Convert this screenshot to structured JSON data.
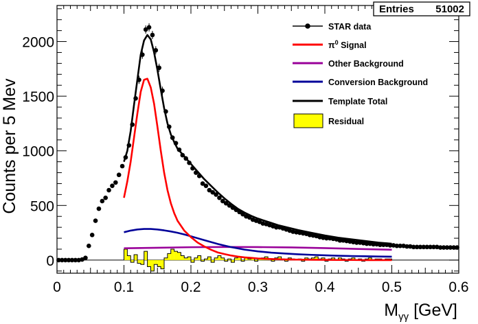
{
  "stats": {
    "label": "Entries",
    "value": "51002"
  },
  "chart_data": {
    "type": "line",
    "xlabel_main": "M",
    "xlabel_sub": "γγ",
    "xlabel_unit": " [GeV]",
    "ylabel": "Counts per 5 Mev",
    "xlim": [
      0,
      0.6
    ],
    "ylim": [
      -120,
      2330
    ],
    "x_ticks": [
      "0",
      "0.1",
      "0.2",
      "0.3",
      "0.4",
      "0.5",
      "0.6"
    ],
    "y_ticks": [
      "0",
      "500",
      "1000",
      "1500",
      "2000"
    ],
    "legend": {
      "star": "STAR data",
      "signal_pi": "π",
      "signal_sup": "0",
      "signal_rest": " Signal",
      "other": "Other Background",
      "conversion": "Conversion Background",
      "template": "Template Total",
      "residual": "Residual"
    },
    "colors": {
      "data": "#000000",
      "signal": "#ff0000",
      "other": "#990099",
      "conversion": "#000099",
      "template": "#000000",
      "residual_fill": "#ffff00",
      "residual_line": "#000000"
    },
    "series": [
      {
        "name": "STAR data",
        "x": [
          0.0025,
          0.0075,
          0.0125,
          0.0175,
          0.0225,
          0.0275,
          0.0325,
          0.0375,
          0.0425,
          0.0475,
          0.0525,
          0.0575,
          0.0625,
          0.0675,
          0.0725,
          0.0775,
          0.0825,
          0.0875,
          0.0925,
          0.0975,
          0.1025,
          0.1075,
          0.1125,
          0.1175,
          0.1225,
          0.1275,
          0.1325,
          0.1375,
          0.1425,
          0.1475,
          0.1525,
          0.1575,
          0.1625,
          0.1675,
          0.1725,
          0.1775,
          0.1825,
          0.1875,
          0.1925,
          0.1975,
          0.2025,
          0.2075,
          0.2125,
          0.2175,
          0.2225,
          0.2275,
          0.2325,
          0.2375,
          0.2425,
          0.2475,
          0.2525,
          0.2575,
          0.2625,
          0.2675,
          0.2725,
          0.2775,
          0.2825,
          0.2875,
          0.2925,
          0.2975,
          0.3025,
          0.3075,
          0.3125,
          0.3175,
          0.3225,
          0.3275,
          0.3325,
          0.3375,
          0.3425,
          0.3475,
          0.3525,
          0.3575,
          0.3625,
          0.3675,
          0.3725,
          0.3775,
          0.3825,
          0.3875,
          0.3925,
          0.3975,
          0.4025,
          0.4075,
          0.4125,
          0.4175,
          0.4225,
          0.4275,
          0.4325,
          0.4375,
          0.4425,
          0.4475,
          0.4525,
          0.4575,
          0.4625,
          0.4675,
          0.4725,
          0.4775,
          0.4825,
          0.4875,
          0.4925,
          0.4975,
          0.5025,
          0.5075,
          0.5125,
          0.5175,
          0.5225,
          0.5275,
          0.5325,
          0.5375,
          0.5425,
          0.5475,
          0.5525,
          0.5575,
          0.5625,
          0.5675,
          0.5725,
          0.5775,
          0.5825,
          0.5875,
          0.5925,
          0.5975
        ],
        "y": [
          0,
          0,
          0,
          0,
          0,
          0,
          0,
          5,
          20,
          130,
          230,
          360,
          470,
          540,
          570,
          640,
          680,
          710,
          780,
          860,
          940,
          1050,
          1240,
          1480,
          1650,
          1880,
          2110,
          2130,
          2060,
          1920,
          1760,
          1550,
          1360,
          1220,
          1120,
          1070,
          1010,
          960,
          930,
          890,
          840,
          800,
          770,
          700,
          680,
          640,
          620,
          600,
          570,
          540,
          520,
          500,
          480,
          460,
          440,
          420,
          400,
          390,
          370,
          360,
          350,
          335,
          330,
          320,
          310,
          300,
          300,
          290,
          280,
          270,
          260,
          255,
          250,
          245,
          240,
          230,
          225,
          220,
          210,
          205,
          200,
          200,
          195,
          190,
          180,
          180,
          175,
          170,
          165,
          160,
          160,
          155,
          150,
          150,
          145,
          145,
          140,
          140,
          140,
          135,
          135,
          130,
          130,
          130,
          125,
          125,
          120,
          120,
          120,
          120,
          120,
          120,
          120,
          120,
          115,
          115,
          115,
          115,
          115,
          115
        ]
      },
      {
        "name": "Template Total",
        "x": [
          0.1,
          0.105,
          0.11,
          0.115,
          0.12,
          0.125,
          0.13,
          0.135,
          0.14,
          0.145,
          0.15,
          0.155,
          0.16,
          0.165,
          0.17,
          0.175,
          0.18,
          0.19,
          0.2,
          0.21,
          0.22,
          0.23,
          0.24,
          0.25,
          0.26,
          0.27,
          0.28,
          0.29,
          0.3,
          0.31,
          0.32,
          0.33,
          0.34,
          0.35,
          0.36,
          0.38,
          0.4,
          0.42,
          0.44,
          0.46,
          0.48,
          0.5
        ],
        "y": [
          900,
          1000,
          1180,
          1420,
          1650,
          1880,
          2010,
          2060,
          2020,
          1900,
          1740,
          1560,
          1390,
          1250,
          1150,
          1080,
          1020,
          950,
          880,
          810,
          740,
          680,
          620,
          565,
          515,
          470,
          435,
          405,
          380,
          360,
          340,
          320,
          305,
          290,
          275,
          250,
          225,
          205,
          190,
          175,
          160,
          150
        ]
      },
      {
        "name": "π0 Signal",
        "x": [
          0.1,
          0.105,
          0.11,
          0.115,
          0.12,
          0.125,
          0.13,
          0.135,
          0.14,
          0.145,
          0.15,
          0.155,
          0.16,
          0.165,
          0.17,
          0.175,
          0.18,
          0.19,
          0.2,
          0.21,
          0.22,
          0.23,
          0.24,
          0.25,
          0.26,
          0.27,
          0.28,
          0.29,
          0.3,
          0.31,
          0.32,
          0.33,
          0.34,
          0.35,
          0.36,
          0.38,
          0.4,
          0.42,
          0.44,
          0.46,
          0.48,
          0.5
        ],
        "y": [
          570,
          720,
          900,
          1120,
          1340,
          1540,
          1650,
          1660,
          1580,
          1430,
          1220,
          1000,
          800,
          640,
          520,
          430,
          360,
          270,
          210,
          160,
          125,
          95,
          70,
          55,
          42,
          32,
          25,
          20,
          15,
          12,
          10,
          8,
          6,
          5,
          4,
          3,
          2,
          1,
          1,
          0,
          0,
          0
        ]
      },
      {
        "name": "Other Background",
        "x": [
          0.1,
          0.15,
          0.2,
          0.25,
          0.3,
          0.35,
          0.4,
          0.45,
          0.5
        ],
        "y": [
          108,
          113,
          118,
          120,
          119,
          116,
          110,
          102,
          95
        ]
      },
      {
        "name": "Conversion Background",
        "x": [
          0.1,
          0.11,
          0.12,
          0.13,
          0.14,
          0.15,
          0.16,
          0.17,
          0.18,
          0.19,
          0.2,
          0.21,
          0.22,
          0.23,
          0.24,
          0.25,
          0.26,
          0.28,
          0.3,
          0.32,
          0.34,
          0.36,
          0.38,
          0.4,
          0.42,
          0.44,
          0.46,
          0.48,
          0.5
        ],
        "y": [
          255,
          270,
          280,
          285,
          285,
          280,
          272,
          262,
          250,
          235,
          218,
          200,
          182,
          165,
          148,
          133,
          119,
          96,
          80,
          68,
          60,
          53,
          48,
          44,
          40,
          37,
          35,
          33,
          31
        ]
      },
      {
        "name": "Residual",
        "x": [
          0.1025,
          0.1075,
          0.1125,
          0.1175,
          0.1225,
          0.1275,
          0.1325,
          0.1375,
          0.1425,
          0.1475,
          0.1525,
          0.1575,
          0.1625,
          0.1675,
          0.1725,
          0.1775,
          0.1825,
          0.1875,
          0.1925,
          0.1975,
          0.2025,
          0.2075,
          0.2125,
          0.2175,
          0.2225,
          0.2275,
          0.2325,
          0.2375,
          0.2425,
          0.2475,
          0.2525,
          0.2575,
          0.2625,
          0.2675,
          0.2725,
          0.2775,
          0.2825,
          0.2875,
          0.2925,
          0.2975,
          0.3025,
          0.3075,
          0.3125,
          0.3175,
          0.3225,
          0.3275,
          0.3325,
          0.3375,
          0.3425,
          0.3475,
          0.3525,
          0.3575,
          0.3625,
          0.3675,
          0.3725,
          0.3775,
          0.3825,
          0.3875,
          0.3925,
          0.3975,
          0.4025,
          0.4075,
          0.4125,
          0.4175,
          0.4225,
          0.4275,
          0.4325,
          0.4375,
          0.4425,
          0.4475,
          0.4525,
          0.4575,
          0.4625,
          0.4675,
          0.4725,
          0.4775,
          0.4825,
          0.4875,
          0.4925,
          0.4975
        ],
        "y": [
          100,
          40,
          -20,
          50,
          -30,
          -40,
          80,
          -60,
          -100,
          -40,
          -60,
          -80,
          20,
          60,
          100,
          80,
          70,
          40,
          20,
          30,
          -20,
          20,
          40,
          -10,
          10,
          30,
          -20,
          20,
          40,
          20,
          -10,
          10,
          -20,
          20,
          30,
          -10,
          20,
          10,
          20,
          -10,
          10,
          20,
          30,
          10,
          -10,
          20,
          30,
          10,
          -10,
          20,
          10,
          0,
          10,
          -10,
          20,
          10,
          20,
          30,
          10,
          20,
          -10,
          10,
          20,
          0,
          20,
          10,
          -10,
          10,
          20,
          0,
          10,
          -10,
          10,
          20,
          0,
          10,
          10,
          0,
          10,
          10
        ]
      }
    ]
  }
}
